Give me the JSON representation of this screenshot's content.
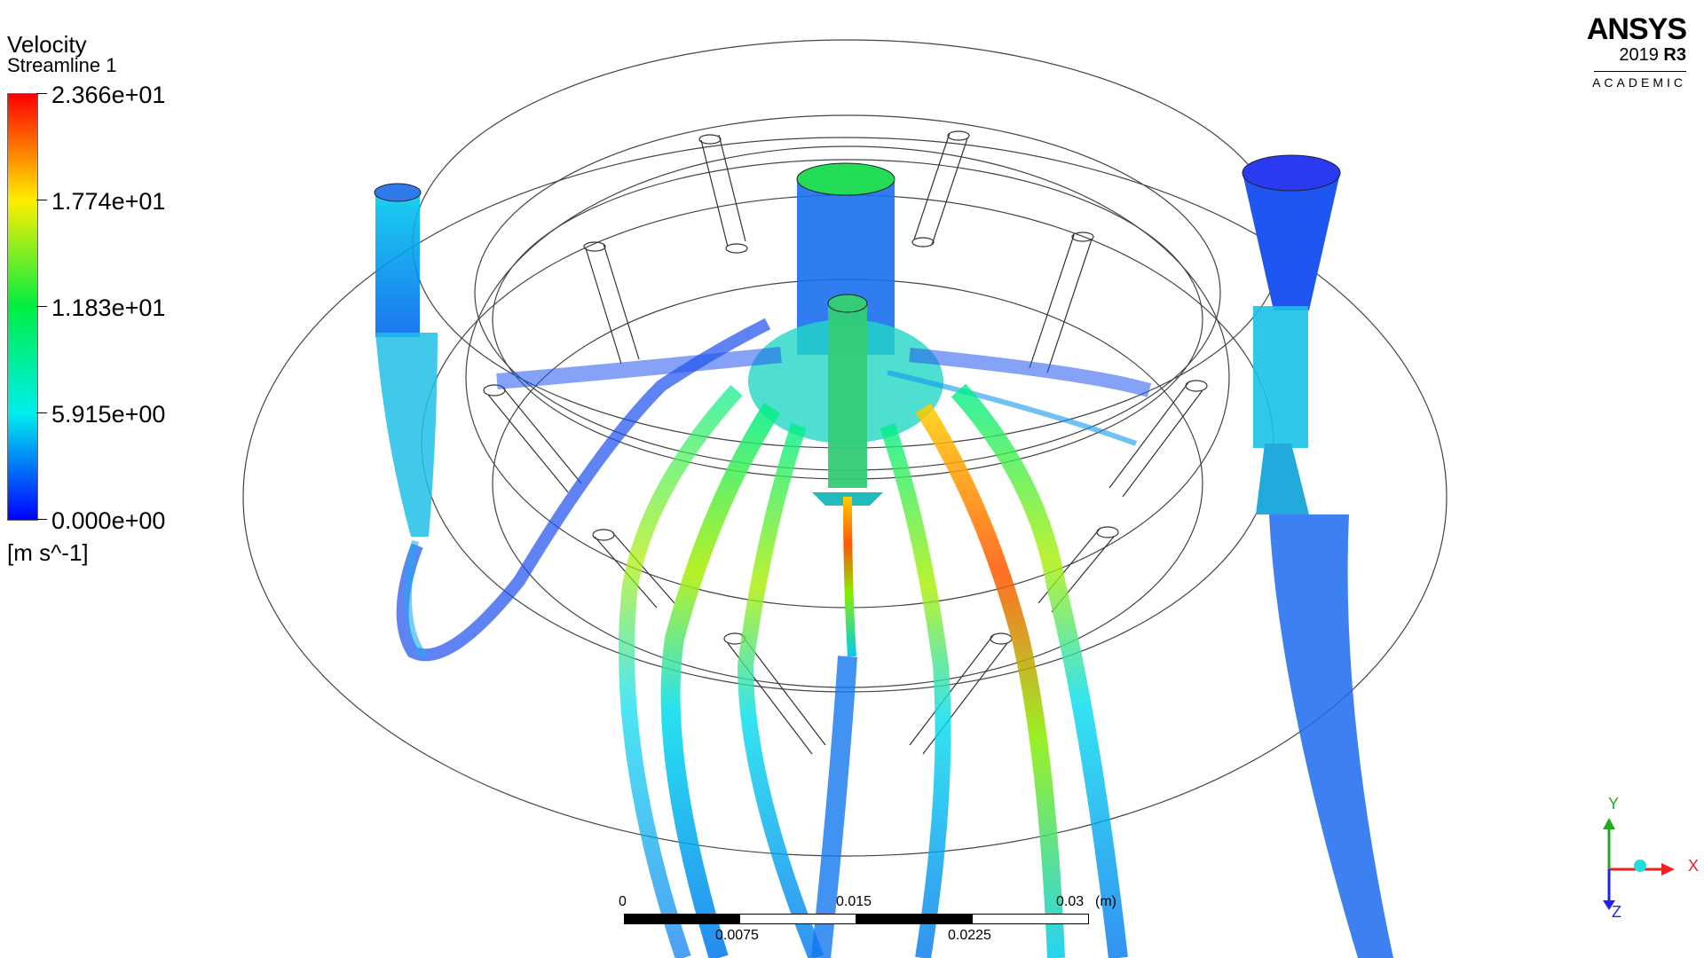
{
  "legend": {
    "title": "Velocity",
    "subtitle": "Streamline 1",
    "unit": "[m s^-1]",
    "labels": [
      "2.366e+01",
      "1.774e+01",
      "1.183e+01",
      "5.915e+00",
      "0.000e+00"
    ],
    "colormap": [
      "#ff0000",
      "#ffee00",
      "#00ee44",
      "#00eeee",
      "#0000ff"
    ]
  },
  "logo": {
    "name": "ANSYS",
    "version": "2019",
    "release": "R3",
    "edition": "ACADEMIC"
  },
  "scale": {
    "unit": "(m)",
    "top_labels": [
      "0",
      "0.015",
      "0.03"
    ],
    "bottom_labels": [
      "0.0075",
      "0.0225"
    ]
  },
  "axes": {
    "x": "X",
    "y": "Y",
    "z": "Z",
    "colors": {
      "x": "#ee2222",
      "y": "#22aa22",
      "z": "#2222ee"
    }
  }
}
